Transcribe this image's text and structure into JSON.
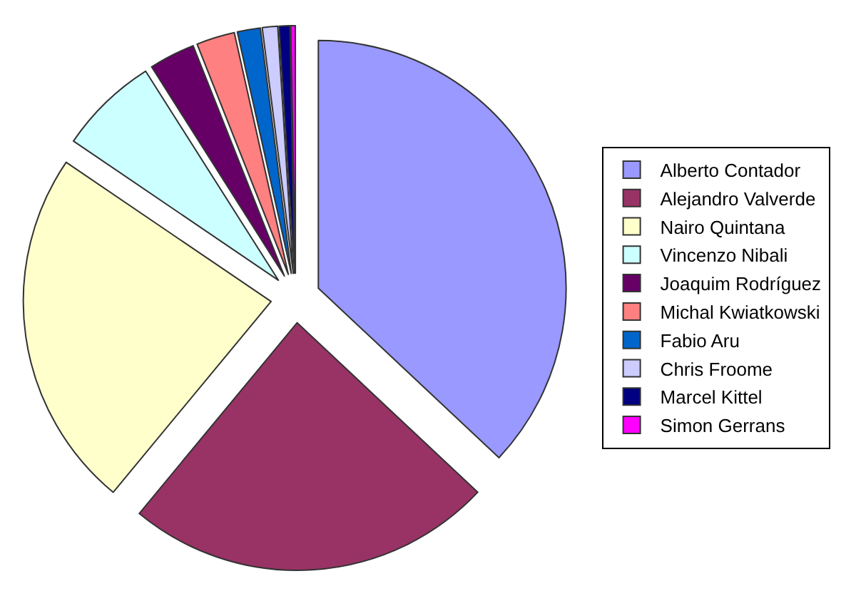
{
  "chart_data": {
    "type": "pie",
    "categories": [
      "Alberto Contador",
      "Alejandro Valverde",
      "Nairo Quintana",
      "Vincenzo Nibali",
      "Joaquim Rodríguez",
      "Michal Kwiatkowski",
      "Fabio Aru",
      "Chris Froome",
      "Marcel Kittel",
      "Simon Gerrans"
    ],
    "values": [
      37,
      24,
      23.5,
      6.5,
      3,
      2.5,
      1.5,
      1,
      0.7,
      0.3
    ],
    "colors": [
      "#9999ff",
      "#993366",
      "#ffffcc",
      "#ccffff",
      "#660066",
      "#ff8080",
      "#0066cc",
      "#ccccff",
      "#000080",
      "#ff00ff"
    ],
    "legend": "right"
  }
}
